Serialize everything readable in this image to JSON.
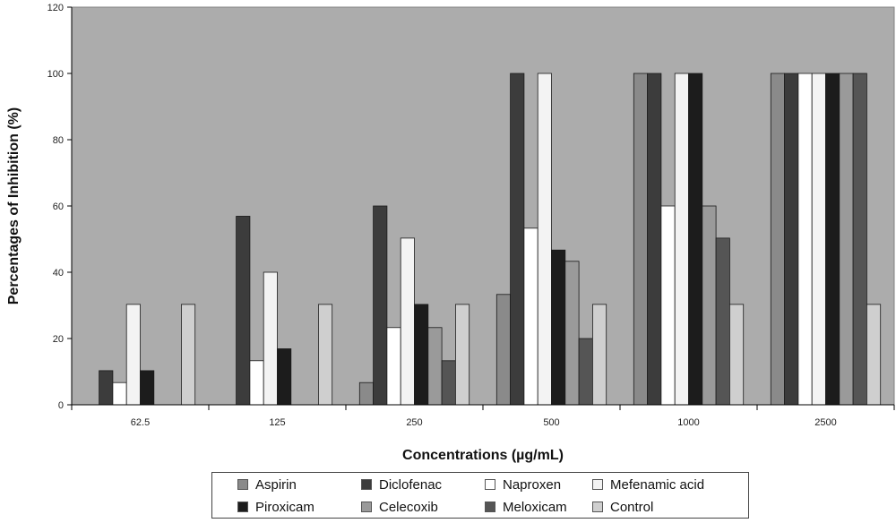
{
  "chart_data": {
    "type": "bar",
    "xlabel": "Concentrations (µg/mL)",
    "ylabel": "Percentages of Inhibition (%)",
    "ylim": [
      0,
      120
    ],
    "yticks": [
      0,
      20,
      40,
      60,
      80,
      100,
      120
    ],
    "grid": false,
    "legend_position": "bottom",
    "plot_background": "#acacac",
    "categories": [
      "62.5",
      "125",
      "250",
      "500",
      "1000",
      "2500"
    ],
    "series": [
      {
        "name": "Aspirin",
        "color": "#8a8a8a",
        "values": [
          0,
          0,
          6.7,
          33.3,
          100,
          100
        ]
      },
      {
        "name": "Diclofenac",
        "color": "#3c3c3c",
        "values": [
          10.3,
          56.9,
          60,
          100,
          100,
          100
        ]
      },
      {
        "name": "Naproxen",
        "color": "#ffffff",
        "values": [
          6.7,
          13.3,
          23.3,
          53.3,
          60,
          100
        ]
      },
      {
        "name": "Mefenamic acid",
        "color": "#f3f3f3",
        "values": [
          30.3,
          40,
          50.3,
          100,
          100,
          100
        ]
      },
      {
        "name": "Piroxicam",
        "color": "#1c1c1c",
        "values": [
          10.3,
          16.9,
          30.3,
          46.7,
          100,
          100
        ]
      },
      {
        "name": "Celecoxib",
        "color": "#9a9a9a",
        "values": [
          0,
          0,
          23.3,
          43.3,
          60,
          100
        ]
      },
      {
        "name": "Meloxicam",
        "color": "#555555",
        "values": [
          0,
          0,
          13.3,
          20,
          50.3,
          100
        ]
      },
      {
        "name": "Control",
        "color": "#cfcfcf",
        "values": [
          30.3,
          30.3,
          30.3,
          30.3,
          30.3,
          30.3
        ]
      }
    ]
  }
}
